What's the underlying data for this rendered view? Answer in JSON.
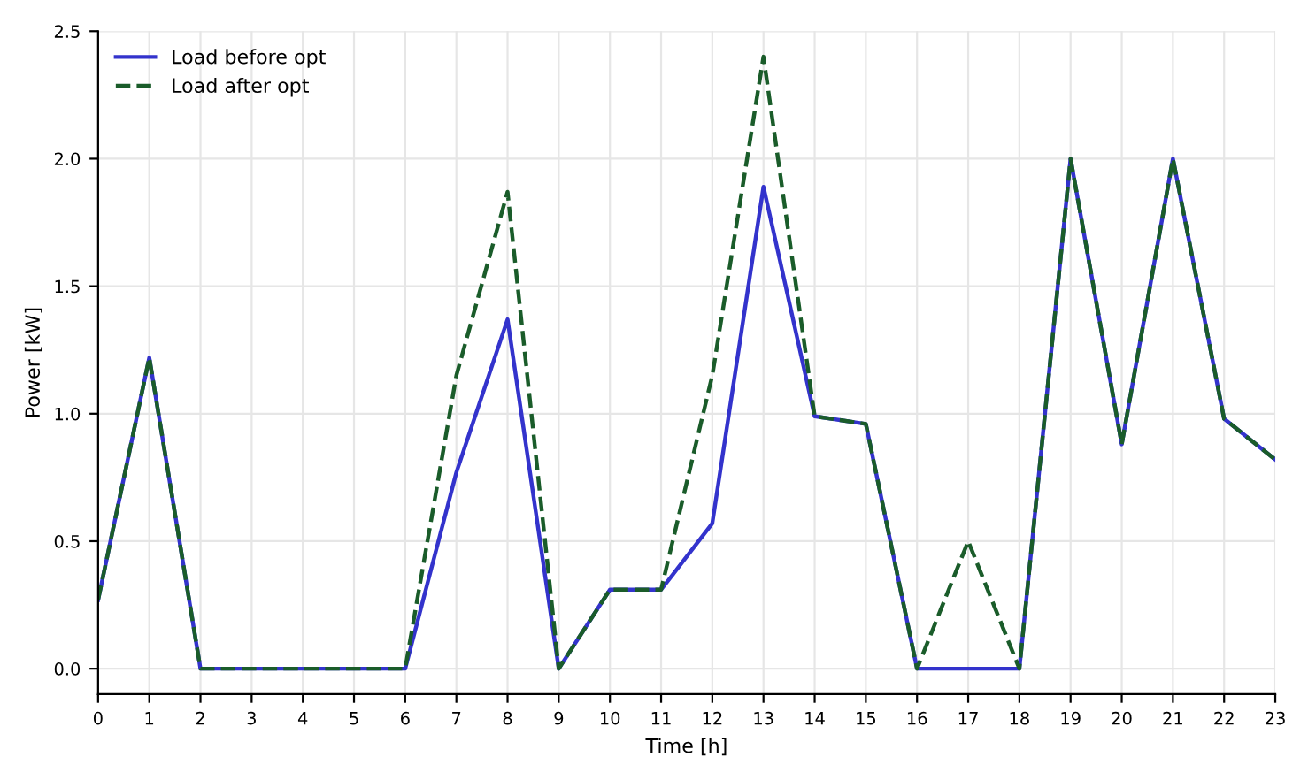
{
  "chart_data": {
    "type": "line",
    "xlabel": "Time [h]",
    "ylabel": "Power [kW]",
    "x": [
      0,
      1,
      2,
      3,
      4,
      5,
      6,
      7,
      8,
      9,
      10,
      11,
      12,
      13,
      14,
      15,
      16,
      17,
      18,
      19,
      20,
      21,
      22,
      23
    ],
    "series": [
      {
        "name": "Load before opt",
        "color": "#3333cc",
        "line_style": "solid",
        "values": [
          0.27,
          1.22,
          0,
          0,
          0,
          0,
          0,
          0.77,
          1.37,
          0,
          0.31,
          0.31,
          0.57,
          1.89,
          0.99,
          0.96,
          0,
          0,
          0,
          2.0,
          0.88,
          2.0,
          0.98,
          0.82
        ]
      },
      {
        "name": "Load after opt",
        "color": "#1a5c2a",
        "line_style": "dashed",
        "values": [
          0.27,
          1.22,
          0,
          0,
          0,
          0,
          0,
          1.15,
          1.87,
          0,
          0.31,
          0.31,
          1.15,
          2.4,
          0.99,
          0.96,
          0,
          0.5,
          0,
          2.0,
          0.88,
          2.0,
          0.98,
          0.82
        ]
      }
    ],
    "xlim": [
      0,
      23
    ],
    "xticks": [
      0,
      1,
      2,
      3,
      4,
      5,
      6,
      7,
      8,
      9,
      10,
      11,
      12,
      13,
      14,
      15,
      16,
      17,
      18,
      19,
      20,
      21,
      22,
      23
    ],
    "ylim": [
      -0.1,
      2.5
    ],
    "yticks": [
      {
        "value": 0,
        "label": "0.0"
      },
      {
        "value": 0.5,
        "label": "0.5"
      },
      {
        "value": 1,
        "label": "1.0"
      },
      {
        "value": 1.5,
        "label": "1.5"
      },
      {
        "value": 2,
        "label": "2.0"
      },
      {
        "value": 2.5,
        "label": "2.5"
      }
    ],
    "grid": true,
    "legend": "top left",
    "marker": "none"
  }
}
